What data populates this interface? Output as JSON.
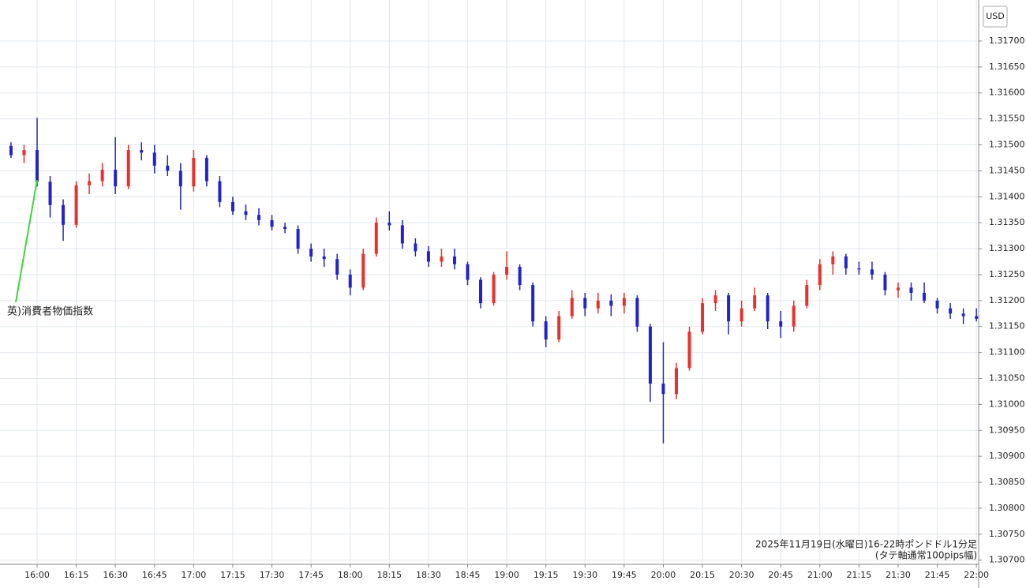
{
  "chart_data": {
    "type": "candlestick",
    "currency_label": "USD",
    "annotation": "英)消費者物価指数",
    "notes": [
      "2025年11月19日(水曜日)16-22時ポンドドル1分足",
      "(タテ軸通常100pips幅)"
    ],
    "up_color": "#e8312e",
    "down_color": "#2323c8",
    "annotation_color": "#3dd63d",
    "grid": true,
    "categories": [
      null,
      null,
      "16:00",
      null,
      null,
      "16:15",
      null,
      null,
      "16:30",
      null,
      null,
      "16:45",
      null,
      null,
      "17:00",
      null,
      null,
      "17:15",
      null,
      null,
      "17:30",
      null,
      null,
      "17:45",
      null,
      null,
      "18:00",
      null,
      null,
      "18:15",
      null,
      null,
      "18:30",
      null,
      null,
      "18:45",
      null,
      null,
      "19:00",
      null,
      null,
      "19:15",
      null,
      null,
      "19:30",
      null,
      null,
      "19:45",
      null,
      null,
      "20:00",
      null,
      null,
      "20:15",
      null,
      null,
      "20:30",
      null,
      null,
      "20:45",
      null,
      null,
      "21:00",
      null,
      null,
      "21:15",
      null,
      null,
      "21:30",
      null,
      null,
      "21:45",
      null,
      null,
      "22:00"
    ],
    "open": [
      1.31498,
      1.3148,
      1.3149,
      1.31429,
      1.31384,
      1.31346,
      1.31422,
      1.3143,
      1.31452,
      1.3142,
      1.3149,
      1.31485,
      1.3146,
      1.3145,
      1.3142,
      1.31475,
      1.3143,
      1.3139,
      1.31372,
      1.31365,
      1.31355,
      1.31342,
      1.31338,
      1.313,
      1.31285,
      1.3128,
      1.3125,
      1.31225,
      1.3129,
      1.3135,
      1.31345,
      1.3131,
      1.31295,
      1.31275,
      1.31285,
      1.3127,
      1.3124,
      1.31195,
      1.3125,
      1.31265,
      1.3123,
      1.3116,
      1.31125,
      1.3117,
      1.31205,
      1.31185,
      1.312,
      1.3119,
      1.31205,
      1.3115,
      1.3104,
      1.3102,
      1.3107,
      1.3114,
      1.31195,
      1.3121,
      1.3116,
      1.31185,
      1.3121,
      1.3116,
      1.3115,
      1.3119,
      1.3123,
      1.3127,
      1.31285,
      1.31262,
      1.3126,
      1.3125,
      1.3122,
      1.31225,
      1.31215,
      1.312,
      1.31185,
      1.31175,
      1.3117
    ],
    "high": [
      1.31505,
      1.315,
      1.31552,
      1.3144,
      1.31395,
      1.3143,
      1.31445,
      1.31465,
      1.31515,
      1.315,
      1.31505,
      1.315,
      1.3148,
      1.31465,
      1.3149,
      1.3148,
      1.3144,
      1.314,
      1.31385,
      1.31378,
      1.31365,
      1.3135,
      1.31345,
      1.3131,
      1.313,
      1.3129,
      1.3126,
      1.313,
      1.3136,
      1.31372,
      1.31355,
      1.3132,
      1.31305,
      1.313,
      1.313,
      1.31275,
      1.31245,
      1.31255,
      1.31295,
      1.3127,
      1.31235,
      1.3117,
      1.3118,
      1.3122,
      1.31215,
      1.31215,
      1.31212,
      1.31215,
      1.3121,
      1.31155,
      1.3112,
      1.3108,
      1.3115,
      1.31205,
      1.3122,
      1.31215,
      1.312,
      1.31225,
      1.31215,
      1.3118,
      1.312,
      1.3124,
      1.3128,
      1.31295,
      1.3129,
      1.31275,
      1.31275,
      1.31255,
      1.31235,
      1.31235,
      1.31235,
      1.31205,
      1.31195,
      1.31185,
      1.31185
    ],
    "low": [
      1.31475,
      1.31465,
      1.3142,
      1.3136,
      1.31315,
      1.3134,
      1.31405,
      1.3142,
      1.31405,
      1.31415,
      1.3147,
      1.31445,
      1.3144,
      1.31375,
      1.3141,
      1.3142,
      1.3138,
      1.31365,
      1.31355,
      1.31345,
      1.31335,
      1.3133,
      1.3129,
      1.31275,
      1.31265,
      1.3124,
      1.3121,
      1.3122,
      1.31285,
      1.31335,
      1.313,
      1.31285,
      1.31265,
      1.31265,
      1.3126,
      1.3123,
      1.31185,
      1.3119,
      1.3124,
      1.3122,
      1.3115,
      1.3111,
      1.3112,
      1.31165,
      1.3117,
      1.31175,
      1.3117,
      1.31175,
      1.3114,
      1.31005,
      1.30925,
      1.3101,
      1.31065,
      1.31135,
      1.3118,
      1.31135,
      1.3115,
      1.3118,
      1.31145,
      1.31128,
      1.3114,
      1.31185,
      1.3122,
      1.3125,
      1.3125,
      1.3125,
      1.3124,
      1.3121,
      1.31205,
      1.312,
      1.31195,
      1.31175,
      1.31165,
      1.31155,
      1.3116
    ],
    "close": [
      1.3148,
      1.3149,
      1.31429,
      1.31384,
      1.31346,
      1.31422,
      1.3143,
      1.31452,
      1.3142,
      1.3149,
      1.31485,
      1.3146,
      1.3145,
      1.3142,
      1.31475,
      1.3143,
      1.3139,
      1.31372,
      1.31365,
      1.31355,
      1.31342,
      1.31338,
      1.313,
      1.31285,
      1.3128,
      1.3125,
      1.31225,
      1.3129,
      1.3135,
      1.31345,
      1.3131,
      1.31295,
      1.31275,
      1.31285,
      1.3127,
      1.3124,
      1.31195,
      1.3125,
      1.31265,
      1.3123,
      1.3116,
      1.31125,
      1.3117,
      1.31205,
      1.31185,
      1.312,
      1.3119,
      1.31205,
      1.3115,
      1.3104,
      1.3102,
      1.3107,
      1.3114,
      1.31195,
      1.3121,
      1.3116,
      1.31185,
      1.3121,
      1.3116,
      1.3115,
      1.3119,
      1.3123,
      1.3127,
      1.31285,
      1.31262,
      1.3126,
      1.3125,
      1.3122,
      1.31225,
      1.31215,
      1.312,
      1.31185,
      1.31175,
      1.3117,
      1.31165
    ],
    "ylim": [
      1.30692,
      1.31779
    ],
    "yticks": [
      {
        "value": 1.307,
        "label": "1.30700"
      },
      {
        "value": 1.3075,
        "label": "1.30750"
      },
      {
        "value": 1.308,
        "label": "1.30800"
      },
      {
        "value": 1.3085,
        "label": "1.30850"
      },
      {
        "value": 1.309,
        "label": "1.30900"
      },
      {
        "value": 1.3095,
        "label": "1.30950"
      },
      {
        "value": 1.31,
        "label": "1.31000"
      },
      {
        "value": 1.3105,
        "label": "1.31050"
      },
      {
        "value": 1.311,
        "label": "1.31100"
      },
      {
        "value": 1.3115,
        "label": "1.31150"
      },
      {
        "value": 1.312,
        "label": "1.31200"
      },
      {
        "value": 1.3125,
        "label": "1.31250"
      },
      {
        "value": 1.313,
        "label": "1.31300"
      },
      {
        "value": 1.3135,
        "label": "1.31350"
      },
      {
        "value": 1.314,
        "label": "1.31400"
      },
      {
        "value": 1.3145,
        "label": "1.31450"
      },
      {
        "value": 1.315,
        "label": "1.31500"
      },
      {
        "value": 1.3155,
        "label": "1.31550"
      },
      {
        "value": 1.316,
        "label": "1.31600"
      },
      {
        "value": 1.3165,
        "label": "1.31650"
      },
      {
        "value": 1.317,
        "label": "1.31700"
      }
    ]
  }
}
